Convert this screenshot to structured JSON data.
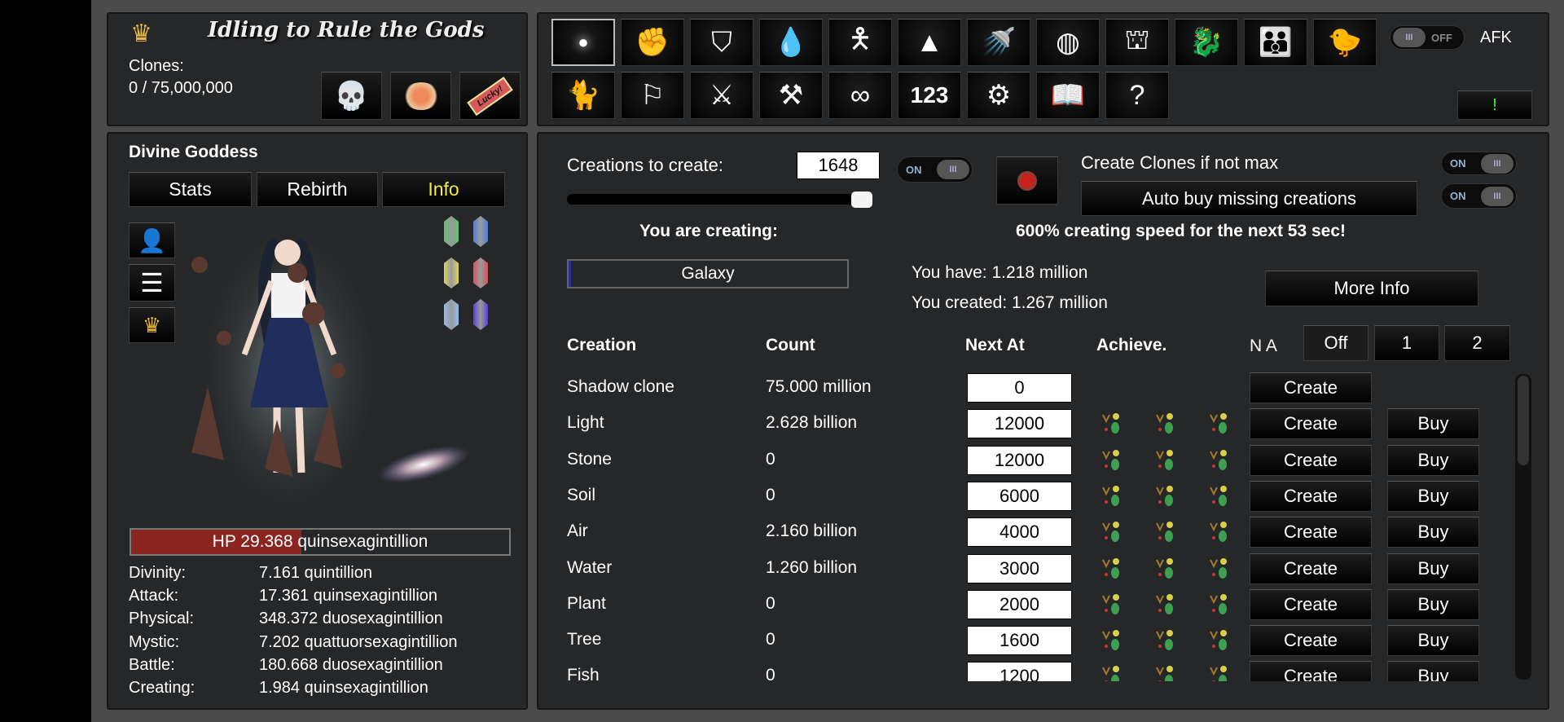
{
  "header": {
    "title": "Idling to Rule the Gods",
    "clones_label": "Clones:",
    "clones_value": "0 / 75,000,000",
    "quick_buttons": [
      "skull-icon",
      "lotus-icon",
      "lucky-ticket-icon"
    ],
    "lucky_text": "Lucky!"
  },
  "toolbar": {
    "row1": [
      {
        "name": "light",
        "glyph": "●"
      },
      {
        "name": "fist",
        "glyph": "✊"
      },
      {
        "name": "shield",
        "glyph": "⛉"
      },
      {
        "name": "slime",
        "glyph": "💧"
      },
      {
        "name": "body",
        "glyph": "🯅"
      },
      {
        "name": "pyramid",
        "glyph": "▲"
      },
      {
        "name": "bath",
        "glyph": "🚿"
      },
      {
        "name": "globe",
        "glyph": "◍"
      },
      {
        "name": "tower",
        "glyph": "⛫"
      },
      {
        "name": "dragon",
        "glyph": "🐉"
      },
      {
        "name": "people",
        "glyph": "👪"
      },
      {
        "name": "chick",
        "glyph": "🐤"
      }
    ],
    "row2": [
      {
        "name": "cat",
        "glyph": "🐈"
      },
      {
        "name": "flag",
        "glyph": "⚐"
      },
      {
        "name": "crossed-swords",
        "glyph": "⚔"
      },
      {
        "name": "anvil",
        "glyph": "⚒"
      },
      {
        "name": "infinity",
        "glyph": "∞"
      },
      {
        "name": "numbers",
        "glyph": "123"
      },
      {
        "name": "gears",
        "glyph": "⚙"
      },
      {
        "name": "book",
        "glyph": "📖"
      },
      {
        "name": "help",
        "glyph": "?"
      }
    ],
    "afk_toggle": "OFF",
    "afk_label": "AFK",
    "alert_button": "!"
  },
  "character": {
    "name": "Divine Goddess",
    "tabs": [
      "Stats",
      "Rebirth",
      "Info"
    ],
    "active_tab": "Info",
    "side_buttons": [
      "person-icon",
      "menu-icon",
      "crown-icon"
    ],
    "gems": [
      "#5bc46a",
      "#4d7fe0",
      "#d9d45a",
      "#d8535a",
      "#8fbbf0",
      "#5a3fd8"
    ],
    "hp_text": "HP 29.368 quinsexagintillion",
    "hp_fraction": 0.45,
    "stats": [
      {
        "label": "Divinity:",
        "value": "7.161 quintillion"
      },
      {
        "label": "Attack:",
        "value": "17.361 quinsexagintillion"
      },
      {
        "label": "Physical:",
        "value": "348.372 duosexagintillion"
      },
      {
        "label": "Mystic:",
        "value": "7.202 quattuorsexagintillion"
      },
      {
        "label": "Battle:",
        "value": "180.668 duosexagintillion"
      },
      {
        "label": "Creating:",
        "value": "1.984 quinsexagintillion"
      }
    ]
  },
  "creation": {
    "to_create_label": "Creations to create:",
    "to_create_value": "1648",
    "to_create_toggle": "ON",
    "slider_fraction": 1.0,
    "clones_if_not_max": "Create Clones if not max",
    "clones_toggle": "ON",
    "auto_buy_label": "Auto buy missing creations",
    "auto_buy_toggle": "ON",
    "you_are_creating": "You are creating:",
    "speed_text": "600% creating speed for the next 53 sec!",
    "current": "Galaxy",
    "current_progress": 0.01,
    "you_have": "You have: 1.218 million",
    "you_created": "You created: 1.267 million",
    "more_info": "More Info",
    "columns": {
      "creation": "Creation",
      "count": "Count",
      "next_at": "Next At",
      "achieve": "Achieve.",
      "na": "N A"
    },
    "na_options": [
      "Off",
      "1",
      "2"
    ],
    "create_label": "Create",
    "buy_label": "Buy",
    "rows": [
      {
        "name": "Shadow clone",
        "count": "75.000 million",
        "next_at": "0",
        "achievements": false,
        "buy": false
      },
      {
        "name": "Light",
        "count": "2.628 billion",
        "next_at": "12000",
        "achievements": true,
        "buy": true
      },
      {
        "name": "Stone",
        "count": "0",
        "next_at": "12000",
        "achievements": true,
        "buy": true
      },
      {
        "name": "Soil",
        "count": "0",
        "next_at": "6000",
        "achievements": true,
        "buy": true
      },
      {
        "name": "Air",
        "count": "2.160 billion",
        "next_at": "4000",
        "achievements": true,
        "buy": true
      },
      {
        "name": "Water",
        "count": "1.260 billion",
        "next_at": "3000",
        "achievements": true,
        "buy": true
      },
      {
        "name": "Plant",
        "count": "0",
        "next_at": "2000",
        "achievements": true,
        "buy": true
      },
      {
        "name": "Tree",
        "count": "0",
        "next_at": "1600",
        "achievements": true,
        "buy": true
      },
      {
        "name": "Fish",
        "count": "0",
        "next_at": "1200",
        "achievements": true,
        "buy": true
      }
    ]
  }
}
